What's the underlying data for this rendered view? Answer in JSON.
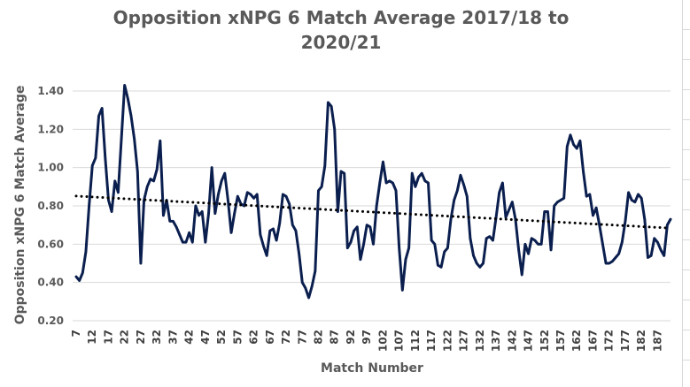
{
  "chart_data": {
    "type": "line",
    "title_lines": [
      "Opposition xNPG 6 Match Average 2017/18 to",
      "2020/21"
    ],
    "xlabel": "Match Number",
    "ylabel": "Opposition xNPG 6 Match Average",
    "x_start": 7,
    "x_tick_labels": [
      "7",
      "12",
      "17",
      "22",
      "27",
      "32",
      "37",
      "42",
      "47",
      "52",
      "57",
      "62",
      "67",
      "72",
      "77",
      "82",
      "87",
      "92",
      "97",
      "102",
      "107",
      "112",
      "117",
      "122",
      "127",
      "132",
      "137",
      "142",
      "147",
      "152",
      "157",
      "162",
      "167",
      "172",
      "177",
      "182",
      "187"
    ],
    "ylim": [
      0.2,
      1.4
    ],
    "y_tick_labels": [
      "0.20",
      "0.40",
      "0.60",
      "0.80",
      "1.00",
      "1.20",
      "1.40"
    ],
    "grid": "horizontal",
    "colors": {
      "series": "#0b1f4f",
      "trend": "#000000",
      "grid": "#d9d9d9",
      "text": "#595959"
    },
    "series": [
      {
        "values": [
          0.43,
          0.41,
          0.45,
          0.56,
          0.8,
          1.01,
          1.05,
          1.27,
          1.31,
          1.05,
          0.83,
          0.77,
          0.93,
          0.87,
          1.15,
          1.43,
          1.36,
          1.27,
          1.15,
          0.98,
          0.5,
          0.83,
          0.9,
          0.94,
          0.93,
          0.99,
          1.14,
          0.75,
          0.83,
          0.72,
          0.72,
          0.69,
          0.65,
          0.61,
          0.61,
          0.66,
          0.61,
          0.8,
          0.75,
          0.77,
          0.61,
          0.76,
          1.0,
          0.76,
          0.86,
          0.93,
          0.97,
          0.83,
          0.66,
          0.76,
          0.85,
          0.81,
          0.8,
          0.87,
          0.86,
          0.84,
          0.86,
          0.65,
          0.59,
          0.54,
          0.67,
          0.68,
          0.62,
          0.71,
          0.86,
          0.85,
          0.81,
          0.7,
          0.67,
          0.55,
          0.4,
          0.37,
          0.32,
          0.38,
          0.46,
          0.88,
          0.9,
          1.01,
          1.34,
          1.32,
          1.2,
          0.77,
          0.98,
          0.97,
          0.58,
          0.61,
          0.67,
          0.69,
          0.52,
          0.6,
          0.7,
          0.69,
          0.6,
          0.8,
          0.92,
          1.03,
          0.92,
          0.93,
          0.92,
          0.88,
          0.58,
          0.36,
          0.52,
          0.58,
          0.97,
          0.9,
          0.95,
          0.97,
          0.93,
          0.92,
          0.62,
          0.6,
          0.49,
          0.48,
          0.56,
          0.58,
          0.73,
          0.83,
          0.88,
          0.96,
          0.91,
          0.85,
          0.63,
          0.54,
          0.5,
          0.48,
          0.5,
          0.63,
          0.64,
          0.62,
          0.74,
          0.87,
          0.92,
          0.74,
          0.78,
          0.82,
          0.73,
          0.57,
          0.44,
          0.6,
          0.55,
          0.63,
          0.62,
          0.6,
          0.6,
          0.77,
          0.77,
          0.57,
          0.8,
          0.82,
          0.83,
          0.84,
          1.11,
          1.17,
          1.12,
          1.1,
          1.14,
          0.98,
          0.85,
          0.86,
          0.75,
          0.79,
          0.7,
          0.6,
          0.5,
          0.5,
          0.51,
          0.53,
          0.55,
          0.61,
          0.72,
          0.87,
          0.83,
          0.82,
          0.86,
          0.84,
          0.73,
          0.53,
          0.54,
          0.63,
          0.61,
          0.57,
          0.54,
          0.7,
          0.73
        ]
      }
    ],
    "trendline": {
      "type": "linear",
      "style": "dotted"
    }
  }
}
